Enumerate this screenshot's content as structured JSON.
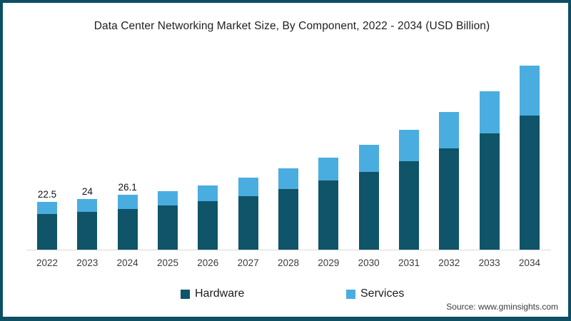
{
  "frame": {
    "border_color": "#0d4f63",
    "background": "#ffffff"
  },
  "title": "Data Center Networking Market Size, By Component, 2022 - 2034 (USD Billion)",
  "source_note": "Source: www.gminsights.com",
  "legend": {
    "items": [
      {
        "label": "Hardware",
        "color": "#0f5468"
      },
      {
        "label": "Services",
        "color": "#4aade0"
      }
    ]
  },
  "chart_data": {
    "type": "bar",
    "stacked": true,
    "title": "Data Center Networking Market Size, By Component, 2022 - 2034 (USD Billion)",
    "unit": "USD Billion",
    "categories": [
      "2022",
      "2023",
      "2024",
      "2025",
      "2026",
      "2027",
      "2028",
      "2029",
      "2030",
      "2031",
      "2032",
      "2033",
      "2034"
    ],
    "series": [
      {
        "name": "Hardware",
        "color": "#0f5468",
        "values": [
          16.8,
          17.7,
          19.3,
          20.9,
          22.8,
          25.4,
          28.5,
          32.6,
          36.8,
          42.0,
          48.1,
          55.0,
          63.7
        ]
      },
      {
        "name": "Services",
        "color": "#4aade0",
        "values": [
          5.7,
          6.3,
          6.8,
          6.9,
          7.6,
          8.7,
          9.9,
          11.1,
          13.0,
          14.9,
          17.2,
          20.2,
          23.7
        ]
      }
    ],
    "totals": [
      22.5,
      24.0,
      26.1,
      27.8,
      30.4,
      34.1,
      38.4,
      43.7,
      49.8,
      56.9,
      65.3,
      75.2,
      87.4
    ],
    "bar_value_labels": [
      "22.5",
      "24",
      "26.1",
      "",
      "",
      "",
      "",
      "",
      "",
      "",
      "",
      "",
      ""
    ],
    "xlabel": "",
    "ylabel": "",
    "gridlines": false,
    "axis_line_color": "#d9d9d9",
    "legend_position": "bottom"
  }
}
